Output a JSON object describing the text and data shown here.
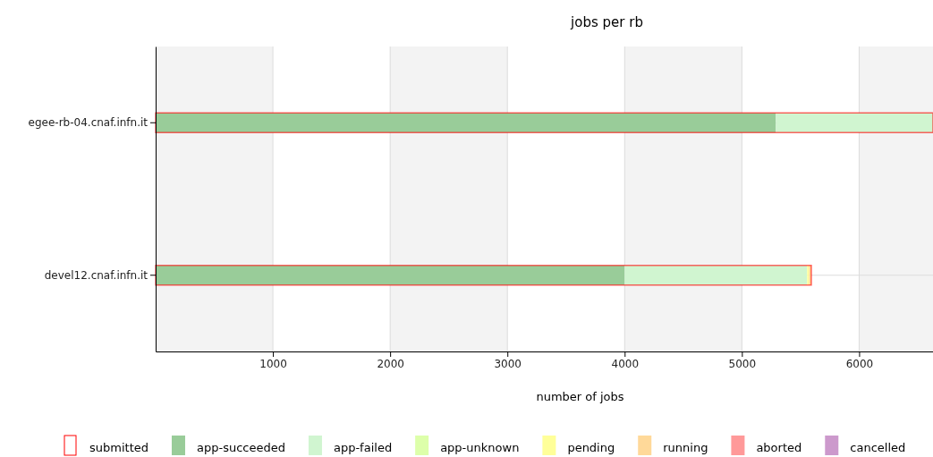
{
  "chart_data": {
    "type": "bar",
    "title": "jobs per rb",
    "xlabel": "number of jobs",
    "orientation": "horizontal",
    "categories": [
      "egee-rb-04.cnaf.infn.it",
      "devel12.cnaf.infn.it"
    ],
    "series": [
      {
        "name": "submitted",
        "color": "#ff0000",
        "type": "bar",
        "values": [
          6630,
          5592
        ]
      },
      {
        "name": "app-succeeded",
        "color": "#99cc99",
        "values": [
          5290,
          4000
        ],
        "base": [
          0,
          0
        ]
      },
      {
        "name": "app-failed",
        "color": "#d0f5d0",
        "values": [
          1340,
          1557
        ],
        "base": [
          5290,
          4000
        ]
      },
      {
        "name": "app-unknown",
        "color": "#ddffaa",
        "values": [
          null,
          null
        ]
      },
      {
        "name": "pending",
        "color": "#ffff99",
        "values": [
          null,
          15
        ],
        "base": [
          null,
          5557
        ]
      },
      {
        "name": "running",
        "color": "#ffd999",
        "values": [
          null,
          20
        ],
        "base": [
          null,
          5572
        ]
      },
      {
        "name": "aborted",
        "color": "#ff9999",
        "values": [
          null,
          null
        ]
      },
      {
        "name": "cancelled",
        "color": "#cc99cc",
        "values": [
          null,
          null
        ]
      }
    ],
    "xlim": [
      0,
      6630
    ],
    "xticks": [
      1000,
      2000,
      3000,
      4000,
      5000,
      6000
    ],
    "grid": true,
    "legend": "bottom"
  }
}
